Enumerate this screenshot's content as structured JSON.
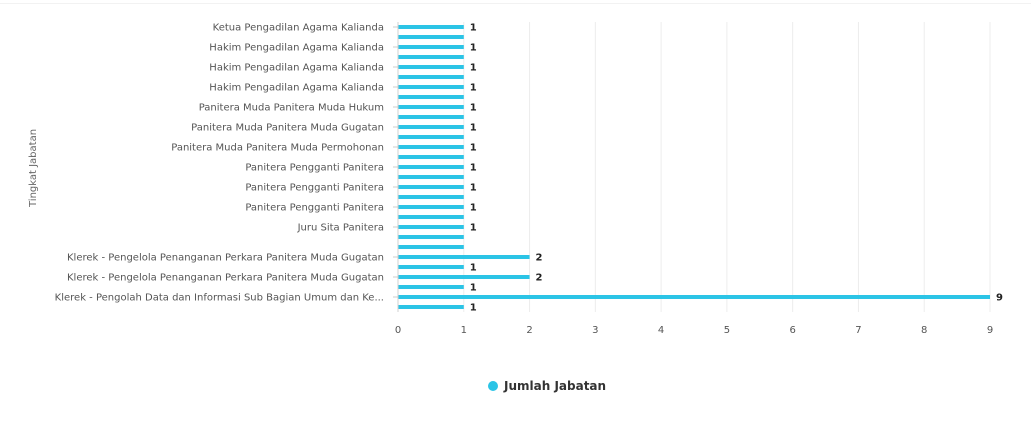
{
  "chart_data": {
    "type": "bar",
    "orientation": "horizontal",
    "title": "",
    "xlabel": "",
    "ylabel": "Tingkat Jabatan",
    "xlim": [
      0,
      9
    ],
    "xticks": [
      0,
      1,
      2,
      3,
      4,
      5,
      6,
      7,
      8,
      9
    ],
    "grid": true,
    "legend_position": "bottom-center",
    "series": [
      {
        "name": "Jumlah Jabatan",
        "color": "#2bc4e6",
        "values": [
          1,
          1,
          1,
          1,
          1,
          1,
          1,
          1,
          1,
          1,
          1,
          1,
          1,
          1,
          1,
          1,
          1,
          1,
          1,
          1,
          1,
          1,
          1,
          2,
          1,
          2,
          1,
          9,
          1
        ],
        "data_labels": [
          "1",
          "",
          "1",
          "",
          "1",
          "",
          "1",
          "",
          "1",
          "",
          "1",
          "",
          "1",
          "",
          "1",
          "",
          "1",
          "",
          "1",
          "",
          "1",
          "",
          "",
          "2",
          "1",
          "2",
          "1",
          "9",
          "1"
        ]
      }
    ],
    "categories": [
      "Ketua Pengadilan Agama Kalianda",
      "",
      "Hakim Pengadilan Agama Kalianda",
      "",
      "Hakim Pengadilan Agama Kalianda",
      "",
      "Hakim Pengadilan Agama Kalianda",
      "",
      "Panitera Muda Panitera Muda Hukum",
      "",
      "Panitera Muda Panitera Muda Gugatan",
      "",
      "Panitera Muda Panitera Muda Permohonan",
      "",
      "Panitera Pengganti Panitera",
      "",
      "Panitera Pengganti Panitera",
      "",
      "Panitera Pengganti Panitera",
      "",
      "Juru Sita Panitera",
      "",
      "",
      "Klerek - Pengelola Penanganan Perkara Panitera Muda Gugatan",
      "",
      "Klerek - Pengelola Penanganan Perkara Panitera Muda Gugatan",
      "",
      "Klerek - Pengolah Data dan Informasi Sub Bagian Umum dan Ke...",
      ""
    ]
  }
}
